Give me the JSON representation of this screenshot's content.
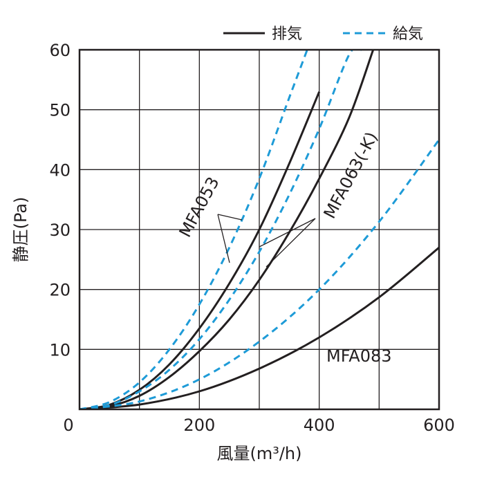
{
  "chart_data": {
    "type": "line",
    "xlabel": "風量(m³/h)",
    "ylabel": "静圧(Pa)",
    "xlim": [
      0,
      600
    ],
    "ylim": [
      0,
      60
    ],
    "x_ticks": [
      "0",
      "200",
      "400",
      "600"
    ],
    "y_ticks": [
      "10",
      "20",
      "30",
      "40",
      "50",
      "60"
    ],
    "grid": true,
    "legend": {
      "position": "top-right",
      "entries": [
        {
          "label": "排気",
          "style": "solid",
          "color": "#231f20"
        },
        {
          "label": "給気",
          "style": "dashed",
          "color": "#1e9bd7"
        }
      ]
    },
    "curve_labels": [
      "MFA053",
      "MFA063(-K)",
      "MFA083"
    ],
    "series": [
      {
        "model": "MFA053",
        "mode": "排気",
        "style": "solid",
        "color": "#231f20",
        "x": [
          0,
          50,
          100,
          150,
          200,
          250,
          300,
          350,
          400
        ],
        "y": [
          0,
          0.75,
          3.25,
          7.5,
          13.5,
          21,
          30,
          41,
          53
        ]
      },
      {
        "model": "MFA053",
        "mode": "給気",
        "style": "dashed",
        "color": "#1e9bd7",
        "x": [
          0,
          50,
          100,
          150,
          200,
          250,
          300,
          350,
          380
        ],
        "y": [
          0,
          1.2,
          4.5,
          10,
          17.5,
          27,
          38.5,
          52,
          60
        ]
      },
      {
        "model": "MFA063(-K)",
        "mode": "排気",
        "style": "solid",
        "color": "#231f20",
        "x": [
          0,
          50,
          100,
          150,
          200,
          250,
          300,
          350,
          400,
          450,
          490
        ],
        "y": [
          0,
          0.5,
          2.25,
          5.4,
          9.7,
          15,
          21.6,
          29.5,
          38.5,
          48.7,
          60
        ]
      },
      {
        "model": "MFA063(-K)",
        "mode": "給気",
        "style": "dashed",
        "color": "#1e9bd7",
        "x": [
          0,
          50,
          100,
          150,
          200,
          250,
          300,
          350,
          400,
          450,
          470
        ],
        "y": [
          0,
          0.7,
          3,
          6.6,
          11.7,
          18.3,
          26.3,
          35.8,
          46.8,
          59.2,
          60
        ]
      },
      {
        "model": "MFA083",
        "mode": "排気",
        "style": "solid",
        "color": "#231f20",
        "x": [
          0,
          100,
          200,
          300,
          400,
          500,
          600
        ],
        "y": [
          0,
          0.8,
          3,
          6.8,
          12,
          18.7,
          27
        ]
      },
      {
        "model": "MFA083",
        "mode": "給気",
        "style": "dashed",
        "color": "#1e9bd7",
        "x": [
          0,
          100,
          200,
          300,
          400,
          500,
          600
        ],
        "y": [
          0,
          1.3,
          5,
          11.3,
          20,
          31.3,
          45
        ]
      }
    ]
  }
}
